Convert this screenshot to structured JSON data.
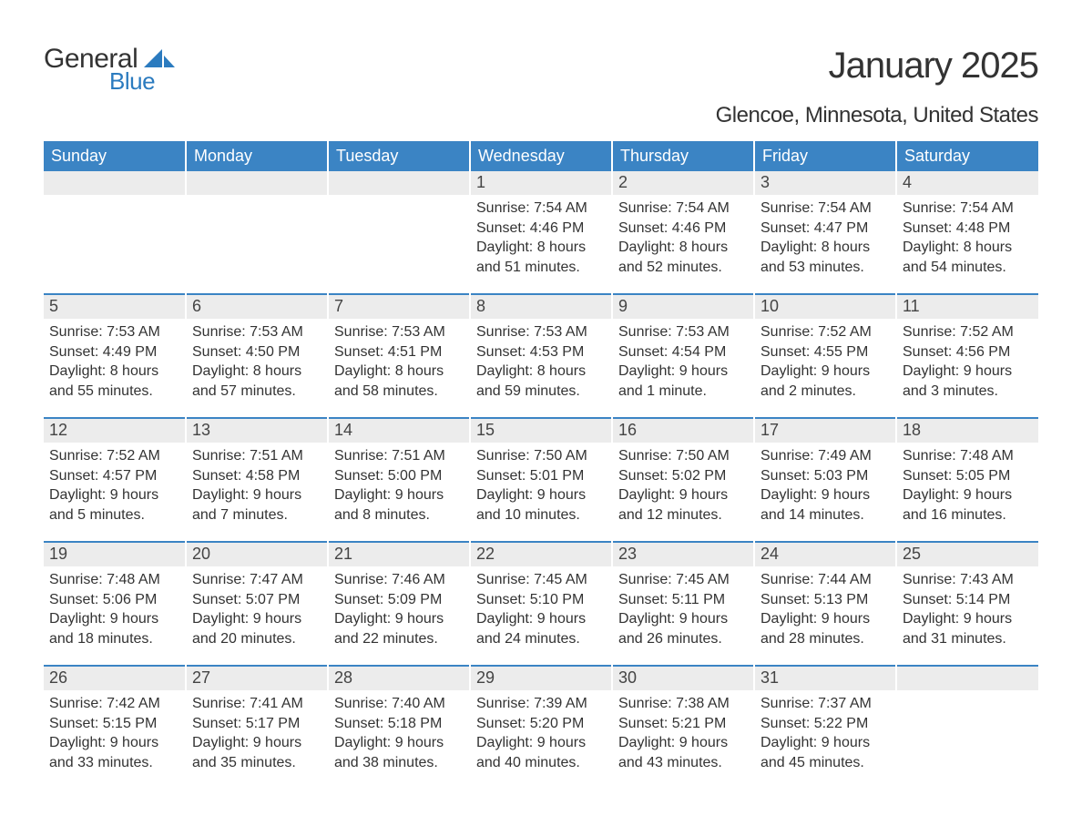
{
  "brand": {
    "general": "General",
    "blue": "Blue"
  },
  "title": "January 2025",
  "location": "Glencoe, Minnesota, United States",
  "colors": {
    "header_bg": "#3b84c4",
    "header_text": "#ffffff",
    "daynum_bg": "#ececec",
    "text": "#333333",
    "brand_blue": "#2b7bbf"
  },
  "weekday_labels": [
    "Sunday",
    "Monday",
    "Tuesday",
    "Wednesday",
    "Thursday",
    "Friday",
    "Saturday"
  ],
  "weeks": [
    [
      {
        "day": "",
        "sunrise": "",
        "sunset": "",
        "daylight": ""
      },
      {
        "day": "",
        "sunrise": "",
        "sunset": "",
        "daylight": ""
      },
      {
        "day": "",
        "sunrise": "",
        "sunset": "",
        "daylight": ""
      },
      {
        "day": "1",
        "sunrise": "Sunrise: 7:54 AM",
        "sunset": "Sunset: 4:46 PM",
        "daylight": "Daylight: 8 hours and 51 minutes."
      },
      {
        "day": "2",
        "sunrise": "Sunrise: 7:54 AM",
        "sunset": "Sunset: 4:46 PM",
        "daylight": "Daylight: 8 hours and 52 minutes."
      },
      {
        "day": "3",
        "sunrise": "Sunrise: 7:54 AM",
        "sunset": "Sunset: 4:47 PM",
        "daylight": "Daylight: 8 hours and 53 minutes."
      },
      {
        "day": "4",
        "sunrise": "Sunrise: 7:54 AM",
        "sunset": "Sunset: 4:48 PM",
        "daylight": "Daylight: 8 hours and 54 minutes."
      }
    ],
    [
      {
        "day": "5",
        "sunrise": "Sunrise: 7:53 AM",
        "sunset": "Sunset: 4:49 PM",
        "daylight": "Daylight: 8 hours and 55 minutes."
      },
      {
        "day": "6",
        "sunrise": "Sunrise: 7:53 AM",
        "sunset": "Sunset: 4:50 PM",
        "daylight": "Daylight: 8 hours and 57 minutes."
      },
      {
        "day": "7",
        "sunrise": "Sunrise: 7:53 AM",
        "sunset": "Sunset: 4:51 PM",
        "daylight": "Daylight: 8 hours and 58 minutes."
      },
      {
        "day": "8",
        "sunrise": "Sunrise: 7:53 AM",
        "sunset": "Sunset: 4:53 PM",
        "daylight": "Daylight: 8 hours and 59 minutes."
      },
      {
        "day": "9",
        "sunrise": "Sunrise: 7:53 AM",
        "sunset": "Sunset: 4:54 PM",
        "daylight": "Daylight: 9 hours and 1 minute."
      },
      {
        "day": "10",
        "sunrise": "Sunrise: 7:52 AM",
        "sunset": "Sunset: 4:55 PM",
        "daylight": "Daylight: 9 hours and 2 minutes."
      },
      {
        "day": "11",
        "sunrise": "Sunrise: 7:52 AM",
        "sunset": "Sunset: 4:56 PM",
        "daylight": "Daylight: 9 hours and 3 minutes."
      }
    ],
    [
      {
        "day": "12",
        "sunrise": "Sunrise: 7:52 AM",
        "sunset": "Sunset: 4:57 PM",
        "daylight": "Daylight: 9 hours and 5 minutes."
      },
      {
        "day": "13",
        "sunrise": "Sunrise: 7:51 AM",
        "sunset": "Sunset: 4:58 PM",
        "daylight": "Daylight: 9 hours and 7 minutes."
      },
      {
        "day": "14",
        "sunrise": "Sunrise: 7:51 AM",
        "sunset": "Sunset: 5:00 PM",
        "daylight": "Daylight: 9 hours and 8 minutes."
      },
      {
        "day": "15",
        "sunrise": "Sunrise: 7:50 AM",
        "sunset": "Sunset: 5:01 PM",
        "daylight": "Daylight: 9 hours and 10 minutes."
      },
      {
        "day": "16",
        "sunrise": "Sunrise: 7:50 AM",
        "sunset": "Sunset: 5:02 PM",
        "daylight": "Daylight: 9 hours and 12 minutes."
      },
      {
        "day": "17",
        "sunrise": "Sunrise: 7:49 AM",
        "sunset": "Sunset: 5:03 PM",
        "daylight": "Daylight: 9 hours and 14 minutes."
      },
      {
        "day": "18",
        "sunrise": "Sunrise: 7:48 AM",
        "sunset": "Sunset: 5:05 PM",
        "daylight": "Daylight: 9 hours and 16 minutes."
      }
    ],
    [
      {
        "day": "19",
        "sunrise": "Sunrise: 7:48 AM",
        "sunset": "Sunset: 5:06 PM",
        "daylight": "Daylight: 9 hours and 18 minutes."
      },
      {
        "day": "20",
        "sunrise": "Sunrise: 7:47 AM",
        "sunset": "Sunset: 5:07 PM",
        "daylight": "Daylight: 9 hours and 20 minutes."
      },
      {
        "day": "21",
        "sunrise": "Sunrise: 7:46 AM",
        "sunset": "Sunset: 5:09 PM",
        "daylight": "Daylight: 9 hours and 22 minutes."
      },
      {
        "day": "22",
        "sunrise": "Sunrise: 7:45 AM",
        "sunset": "Sunset: 5:10 PM",
        "daylight": "Daylight: 9 hours and 24 minutes."
      },
      {
        "day": "23",
        "sunrise": "Sunrise: 7:45 AM",
        "sunset": "Sunset: 5:11 PM",
        "daylight": "Daylight: 9 hours and 26 minutes."
      },
      {
        "day": "24",
        "sunrise": "Sunrise: 7:44 AM",
        "sunset": "Sunset: 5:13 PM",
        "daylight": "Daylight: 9 hours and 28 minutes."
      },
      {
        "day": "25",
        "sunrise": "Sunrise: 7:43 AM",
        "sunset": "Sunset: 5:14 PM",
        "daylight": "Daylight: 9 hours and 31 minutes."
      }
    ],
    [
      {
        "day": "26",
        "sunrise": "Sunrise: 7:42 AM",
        "sunset": "Sunset: 5:15 PM",
        "daylight": "Daylight: 9 hours and 33 minutes."
      },
      {
        "day": "27",
        "sunrise": "Sunrise: 7:41 AM",
        "sunset": "Sunset: 5:17 PM",
        "daylight": "Daylight: 9 hours and 35 minutes."
      },
      {
        "day": "28",
        "sunrise": "Sunrise: 7:40 AM",
        "sunset": "Sunset: 5:18 PM",
        "daylight": "Daylight: 9 hours and 38 minutes."
      },
      {
        "day": "29",
        "sunrise": "Sunrise: 7:39 AM",
        "sunset": "Sunset: 5:20 PM",
        "daylight": "Daylight: 9 hours and 40 minutes."
      },
      {
        "day": "30",
        "sunrise": "Sunrise: 7:38 AM",
        "sunset": "Sunset: 5:21 PM",
        "daylight": "Daylight: 9 hours and 43 minutes."
      },
      {
        "day": "31",
        "sunrise": "Sunrise: 7:37 AM",
        "sunset": "Sunset: 5:22 PM",
        "daylight": "Daylight: 9 hours and 45 minutes."
      },
      {
        "day": "",
        "sunrise": "",
        "sunset": "",
        "daylight": ""
      }
    ]
  ]
}
